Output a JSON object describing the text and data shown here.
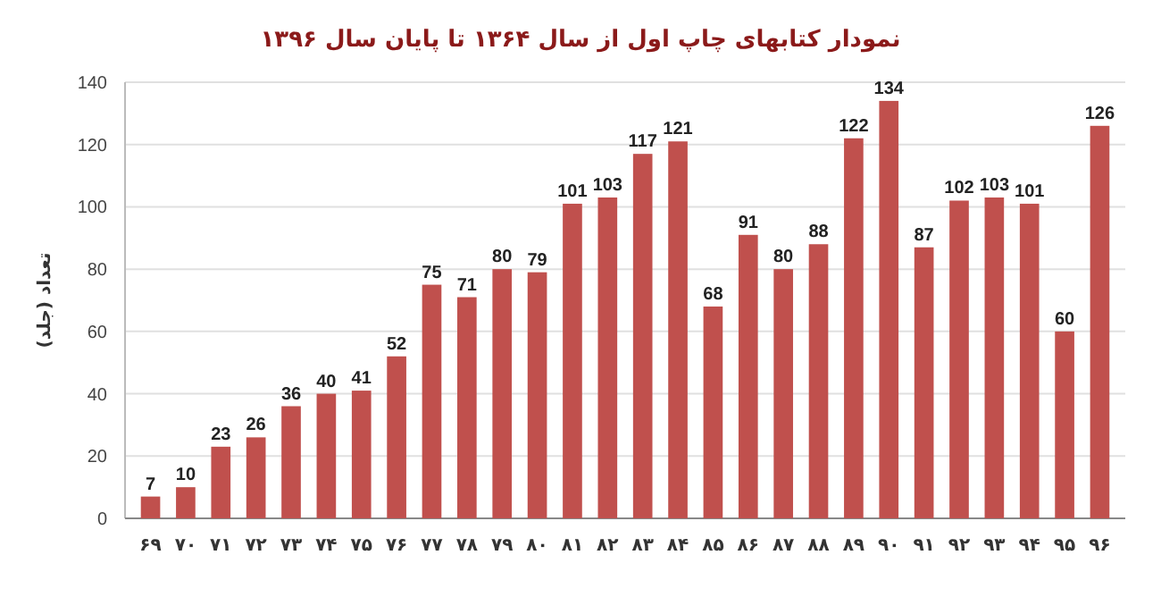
{
  "chart_data": {
    "type": "bar",
    "title": "نمودار کتابهای چاپ اول از سال ۱۳۶۴ تا پایان سال ۱۳۹۶",
    "ylabel": "تعداد (جلد)",
    "categories": [
      "۶۹",
      "۷۰",
      "۷۱",
      "۷۲",
      "۷۳",
      "۷۴",
      "۷۵",
      "۷۶",
      "۷۷",
      "۷۸",
      "۷۹",
      "۸۰",
      "۸۱",
      "۸۲",
      "۸۳",
      "۸۴",
      "۸۵",
      "۸۶",
      "۸۷",
      "۸۸",
      "۸۹",
      "۹۰",
      "۹۱",
      "۹۲",
      "۹۳",
      "۹۴",
      "۹۵",
      "۹۶"
    ],
    "values": [
      7,
      10,
      23,
      26,
      36,
      40,
      41,
      52,
      75,
      71,
      80,
      79,
      101,
      103,
      117,
      121,
      68,
      91,
      80,
      88,
      122,
      134,
      87,
      102,
      103,
      101,
      60,
      126
    ],
    "color": "#c0504d",
    "ylim": [
      0,
      140
    ],
    "yticks": [
      0,
      20,
      40,
      60,
      80,
      100,
      120,
      140
    ],
    "grid": "y",
    "data_labels": true
  }
}
